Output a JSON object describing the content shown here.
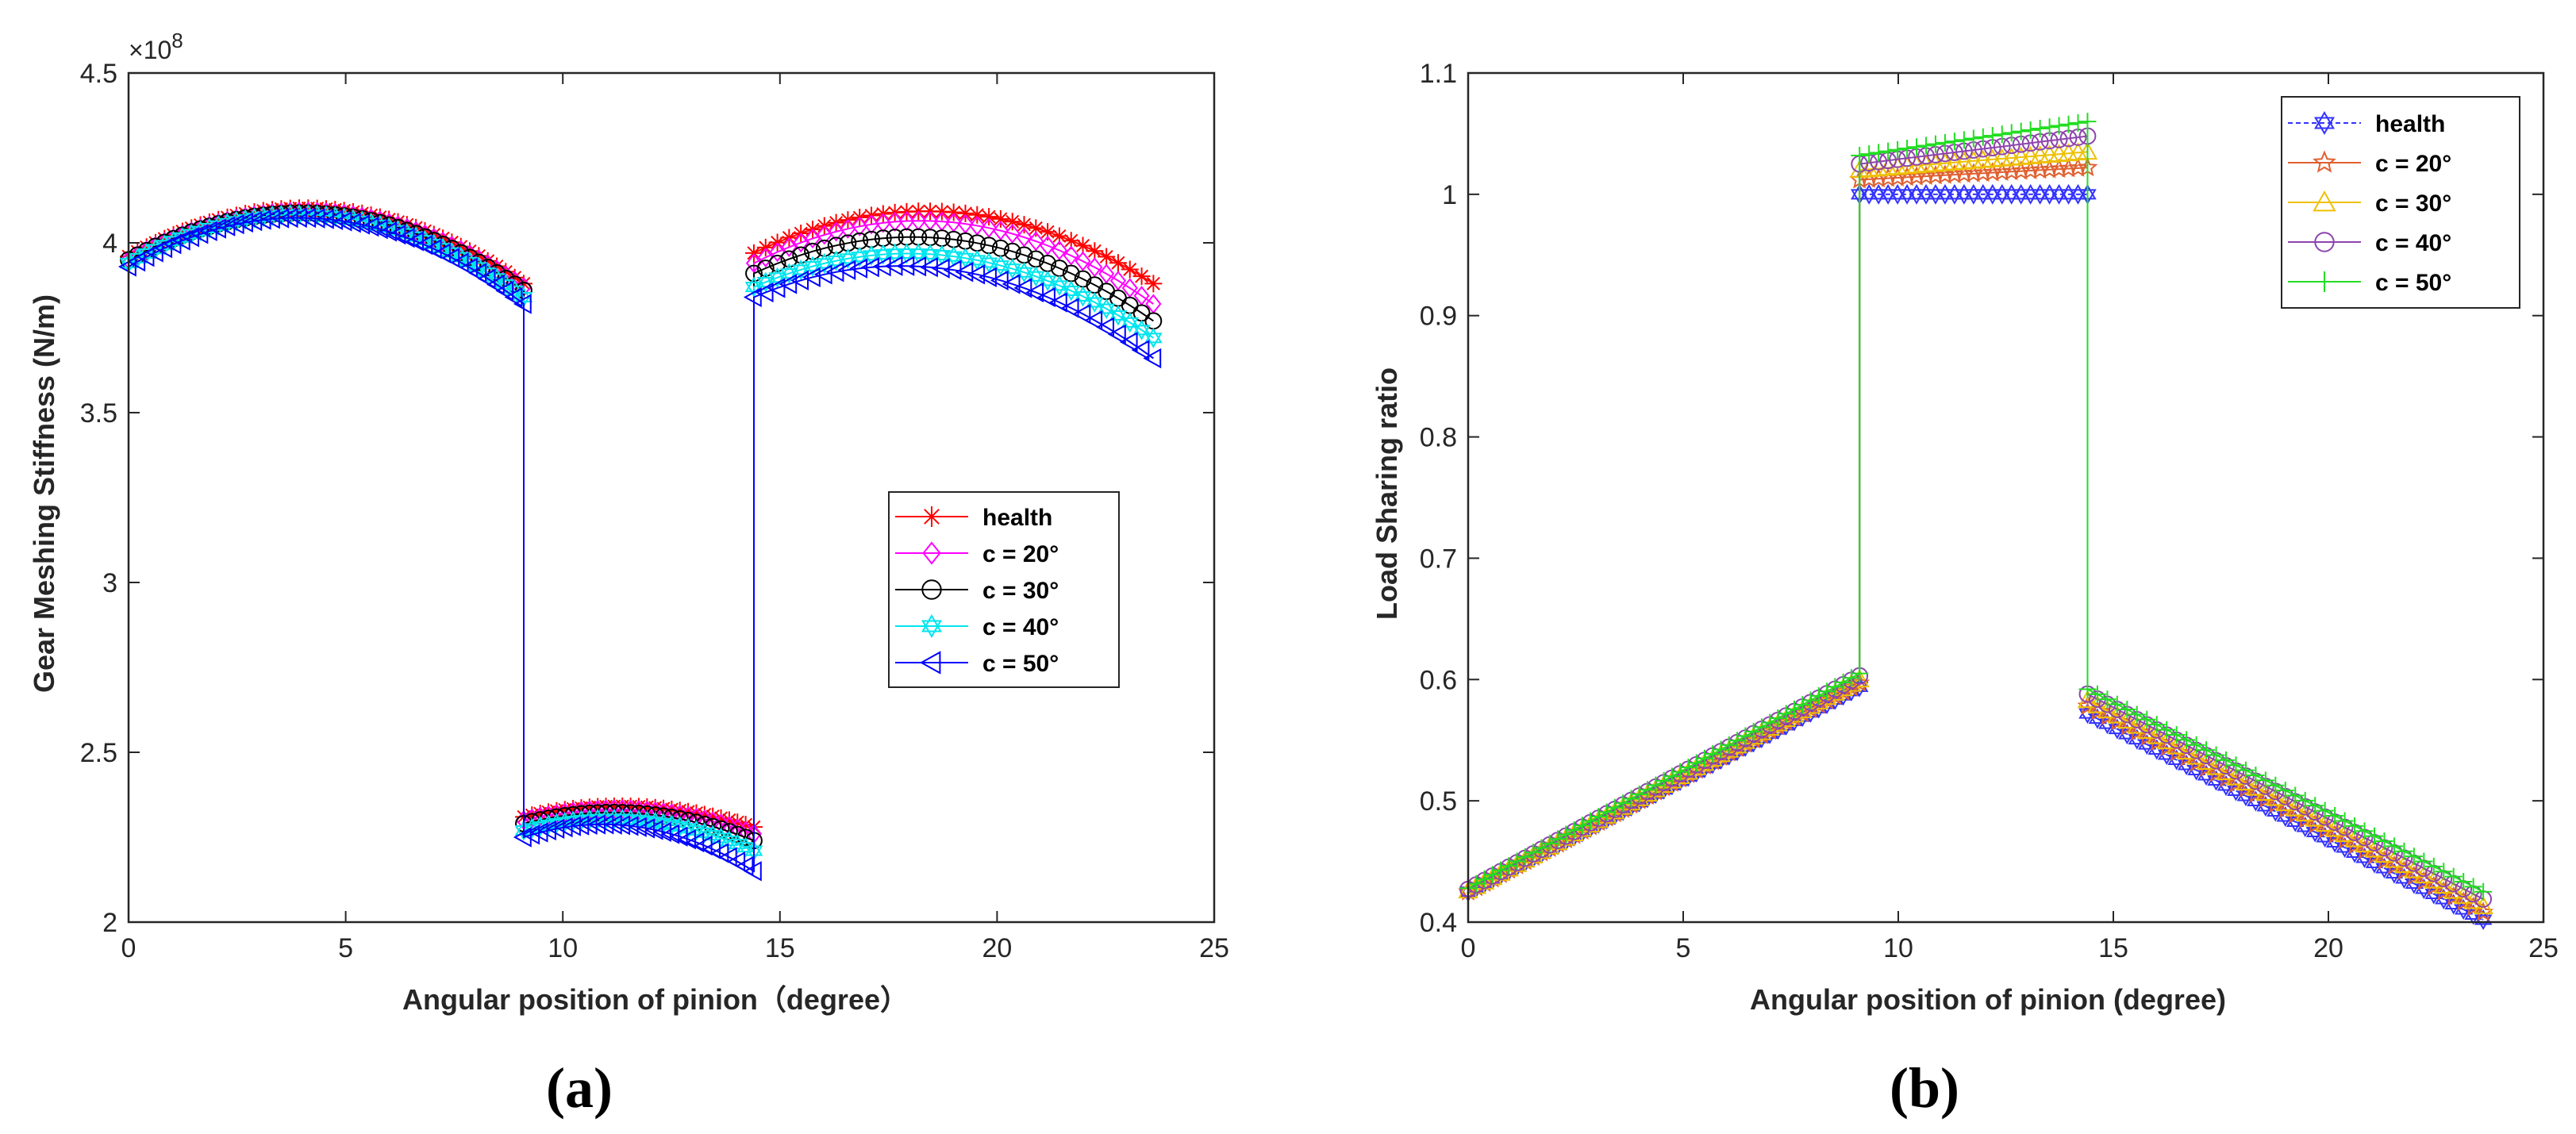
{
  "chart_data": [
    {
      "id": "a",
      "type": "line",
      "caption": "(a)",
      "xlabel": "Angular position of pinion（degree）",
      "ylabel": "Gear Meshing Stiffness (N/m)",
      "y_exponent_label": "×10",
      "y_exponent_power": "8",
      "xlim": [
        0,
        25
      ],
      "ylim": [
        2,
        4.5
      ],
      "xticks": [
        0,
        5,
        10,
        15,
        20,
        25
      ],
      "yticks": [
        2,
        2.5,
        3,
        3.5,
        4,
        4.5
      ],
      "ytick_labels": [
        "2",
        "2.5",
        "3",
        "3.5",
        "4",
        "4.5"
      ],
      "legend_position": "center-right",
      "segments_x": [
        [
          0,
          9.1
        ],
        [
          9.1,
          14.4
        ],
        [
          14.4,
          23.6
        ]
      ],
      "series": [
        {
          "name": "health",
          "color": "#ff0000",
          "marker": "asterisk",
          "seg1": [
            3.96,
            4.1,
            3.88
          ],
          "seg2": [
            2.31,
            2.34,
            2.28
          ],
          "seg3": [
            3.97,
            4.09,
            3.88
          ]
        },
        {
          "name": "c = 20°",
          "color": "#ff00ff",
          "marker": "diamond",
          "seg1": [
            3.95,
            4.09,
            3.87
          ],
          "seg2": [
            2.3,
            2.33,
            2.26
          ],
          "seg3": [
            3.94,
            4.06,
            3.82
          ]
        },
        {
          "name": "c = 30°",
          "color": "#000000",
          "marker": "circle",
          "seg1": [
            3.95,
            4.085,
            3.86
          ],
          "seg2": [
            2.29,
            2.32,
            2.24
          ],
          "seg3": [
            3.91,
            4.01,
            3.77
          ]
        },
        {
          "name": "c = 40°",
          "color": "#00e5ee",
          "marker": "hexagram",
          "seg1": [
            3.94,
            4.08,
            3.84
          ],
          "seg2": [
            2.27,
            2.3,
            2.21
          ],
          "seg3": [
            3.87,
            3.96,
            3.72
          ]
        },
        {
          "name": "c = 50°",
          "color": "#0000ff",
          "marker": "triangle-left",
          "seg1": [
            3.93,
            4.07,
            3.82
          ],
          "seg2": [
            2.25,
            2.28,
            2.15
          ],
          "seg3": [
            3.84,
            3.92,
            3.66
          ]
        }
      ]
    },
    {
      "id": "b",
      "type": "line",
      "caption": "(b)",
      "xlabel": "Angular position of pinion (degree)",
      "ylabel": "Load Sharing ratio",
      "xlim": [
        0,
        25
      ],
      "ylim": [
        0.4,
        1.1
      ],
      "xticks": [
        0,
        5,
        10,
        15,
        20,
        25
      ],
      "yticks": [
        0.4,
        0.5,
        0.6,
        0.7,
        0.8,
        0.9,
        1,
        1.1
      ],
      "ytick_labels": [
        "0.4",
        "0.5",
        "0.6",
        "0.7",
        "0.8",
        "0.9",
        "1",
        "1.1"
      ],
      "legend_position": "top-right",
      "segments_x": [
        [
          0,
          9.1
        ],
        [
          9.1,
          14.4
        ],
        [
          14.4,
          23.6
        ]
      ],
      "series": [
        {
          "name": "health",
          "color": "#3333ff",
          "marker": "hexagram",
          "dashed": true,
          "seg1": [
            0.425,
            0.594
          ],
          "seg2": [
            1.0,
            1.0
          ],
          "seg3": [
            0.572,
            0.402
          ]
        },
        {
          "name": "c = 20°",
          "color": "#e06030",
          "marker": "pentagram",
          "seg1": [
            0.425,
            0.597
          ],
          "seg2": [
            1.012,
            1.022
          ],
          "seg3": [
            0.578,
            0.408
          ]
        },
        {
          "name": "c = 30°",
          "color": "#eec000",
          "marker": "triangle-up",
          "seg1": [
            0.426,
            0.6
          ],
          "seg2": [
            1.02,
            1.035
          ],
          "seg3": [
            0.583,
            0.413
          ]
        },
        {
          "name": "c = 40°",
          "color": "#8e44ad",
          "marker": "circle",
          "seg1": [
            0.427,
            0.603
          ],
          "seg2": [
            1.025,
            1.048
          ],
          "seg3": [
            0.588,
            0.419
          ]
        },
        {
          "name": "c = 50°",
          "color": "#22dd22",
          "marker": "plus",
          "seg1": [
            0.428,
            0.605
          ],
          "seg2": [
            1.032,
            1.06
          ],
          "seg3": [
            0.592,
            0.425
          ]
        }
      ]
    }
  ]
}
